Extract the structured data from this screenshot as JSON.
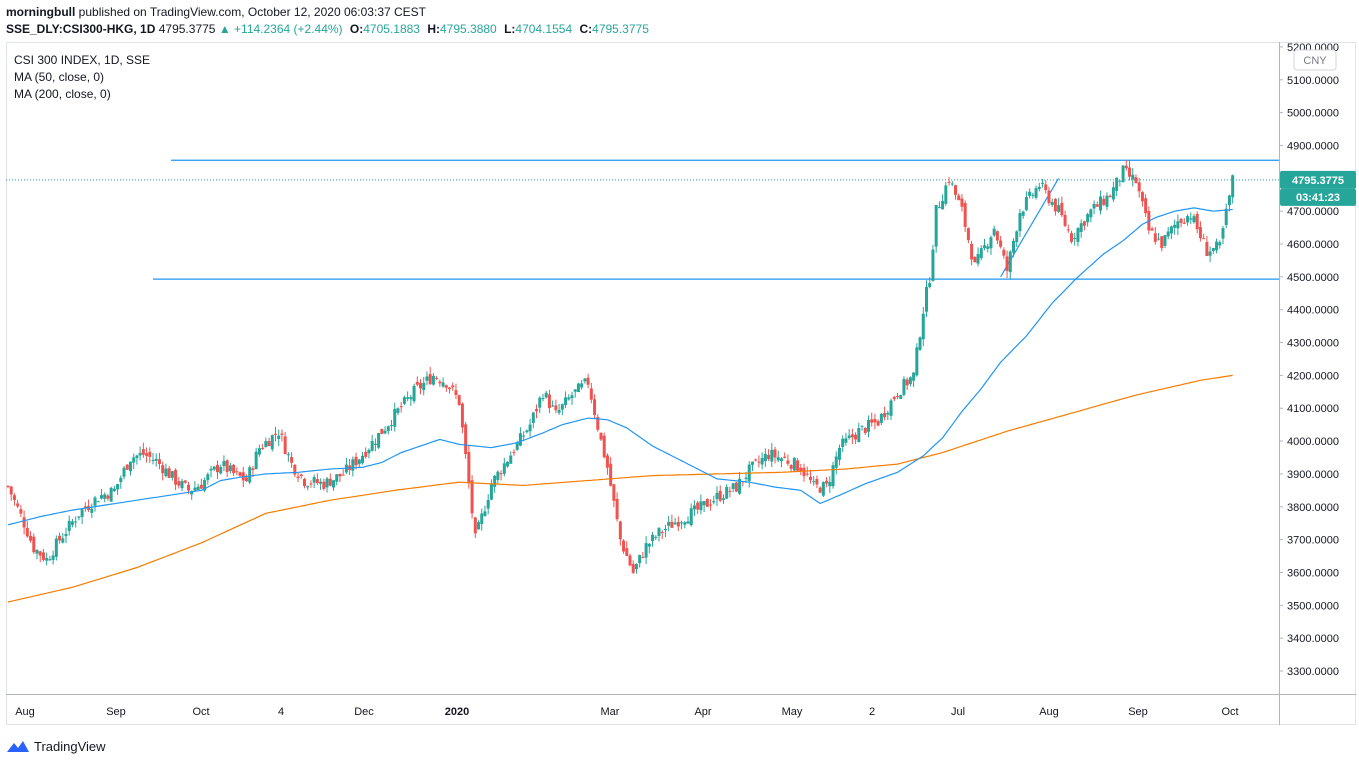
{
  "header": {
    "author": "morningbull",
    "published": "published on TradingView.com, October 12, 2020 06:03:37 CEST",
    "symbol": "SSE_DLY:CSI300-HKG, 1D",
    "price": "4795.3775",
    "change": "▲ +114.2364 (+2.44%)",
    "o_label": "O:",
    "o_value": "4705.1883",
    "h_label": "H:",
    "h_value": "4795.3880",
    "l_label": "L:",
    "l_value": "4704.1554",
    "c_label": "C:",
    "c_value": "4795.3775"
  },
  "legend": {
    "title": "CSI 300 INDEX, 1D, SSE",
    "ma50": "MA (50, close, 0)",
    "ma200": "MA (200, close, 0)"
  },
  "currency": "CNY",
  "last_price_badge": "4795.3775",
  "countdown_badge": "03:41:23",
  "footer": {
    "brand": "TradingView"
  },
  "colors": {
    "up": "#26a69a",
    "down": "#ef5350",
    "ma50": "#2196f3",
    "ma200": "#f57c00",
    "hline": "#2196f3",
    "badge": "#26a69a"
  },
  "chart_data": {
    "type": "candlestick",
    "y_axis_ticks": [
      "3300.0000",
      "3400.0000",
      "3500.0000",
      "3600.0000",
      "3700.0000",
      "3800.0000",
      "3900.0000",
      "4000.0000",
      "4100.0000",
      "4200.0000",
      "4300.0000",
      "4400.0000",
      "4500.0000",
      "4600.0000",
      "4700.0000",
      "4800.0000",
      "4900.0000",
      "5000.0000",
      "5100.0000",
      "5200.0000"
    ],
    "ylim": [
      3230,
      5215
    ],
    "x_axis_labels": [
      "Aug",
      "Sep",
      "Oct",
      "4",
      "Dec",
      "2020",
      "Mar",
      "Apr",
      "May",
      "2",
      "Jul",
      "Aug",
      "Sep",
      "Oct"
    ],
    "x_axis_bold": [
      "2020"
    ],
    "grid": false,
    "horizontal_lines": [
      {
        "name": "resistance",
        "value": 4855
      },
      {
        "name": "support",
        "value": 4493
      }
    ],
    "last_close": 4795.3775,
    "series_keypoints": {
      "close": [
        [
          0,
          3862
        ],
        [
          5,
          3750
        ],
        [
          8,
          3675
        ],
        [
          12,
          3640
        ],
        [
          16,
          3700
        ],
        [
          22,
          3780
        ],
        [
          28,
          3830
        ],
        [
          33,
          3850
        ],
        [
          38,
          3950
        ],
        [
          42,
          3960
        ],
        [
          46,
          3940
        ],
        [
          52,
          3880
        ],
        [
          56,
          3850
        ],
        [
          60,
          3870
        ],
        [
          66,
          3930
        ],
        [
          70,
          3900
        ],
        [
          74,
          3880
        ],
        [
          78,
          3980
        ],
        [
          84,
          4030
        ],
        [
          88,
          3930
        ],
        [
          92,
          3880
        ],
        [
          98,
          3870
        ],
        [
          104,
          3900
        ],
        [
          110,
          3960
        ],
        [
          116,
          4030
        ],
        [
          120,
          4080
        ],
        [
          126,
          4150
        ],
        [
          132,
          4200
        ],
        [
          136,
          4180
        ],
        [
          140,
          4120
        ],
        [
          145,
          3700
        ],
        [
          150,
          3870
        ],
        [
          156,
          3960
        ],
        [
          162,
          4050
        ],
        [
          166,
          4150
        ],
        [
          170,
          4080
        ],
        [
          175,
          4140
        ],
        [
          180,
          4180
        ],
        [
          184,
          4000
        ],
        [
          186,
          3920
        ],
        [
          190,
          3700
        ],
        [
          194,
          3600
        ],
        [
          198,
          3680
        ],
        [
          202,
          3720
        ],
        [
          208,
          3760
        ],
        [
          214,
          3790
        ],
        [
          220,
          3830
        ],
        [
          226,
          3860
        ],
        [
          230,
          3910
        ],
        [
          236,
          3960
        ],
        [
          241,
          3945
        ],
        [
          246,
          3920
        ],
        [
          250,
          3860
        ],
        [
          254,
          3860
        ],
        [
          258,
          3980
        ],
        [
          264,
          4030
        ],
        [
          270,
          4060
        ],
        [
          276,
          4150
        ],
        [
          281,
          4200
        ],
        [
          284,
          4400
        ],
        [
          286,
          4500
        ],
        [
          288,
          4700
        ],
        [
          292,
          4800
        ],
        [
          296,
          4700
        ],
        [
          300,
          4530
        ],
        [
          306,
          4650
        ],
        [
          310,
          4520
        ],
        [
          314,
          4700
        ],
        [
          320,
          4780
        ],
        [
          326,
          4700
        ],
        [
          330,
          4620
        ],
        [
          336,
          4700
        ],
        [
          342,
          4750
        ],
        [
          346,
          4820
        ],
        [
          350,
          4790
        ],
        [
          354,
          4640
        ],
        [
          358,
          4600
        ],
        [
          363,
          4670
        ],
        [
          367,
          4690
        ],
        [
          372,
          4580
        ],
        [
          376,
          4590
        ],
        [
          380,
          4795
        ]
      ],
      "ma50": [
        [
          0,
          3745
        ],
        [
          10,
          3770
        ],
        [
          20,
          3790
        ],
        [
          30,
          3805
        ],
        [
          40,
          3820
        ],
        [
          50,
          3835
        ],
        [
          60,
          3850
        ],
        [
          66,
          3880
        ],
        [
          72,
          3890
        ],
        [
          80,
          3900
        ],
        [
          90,
          3905
        ],
        [
          100,
          3915
        ],
        [
          110,
          3920
        ],
        [
          116,
          3935
        ],
        [
          122,
          3965
        ],
        [
          128,
          3985
        ],
        [
          134,
          4005
        ],
        [
          140,
          3990
        ],
        [
          150,
          3980
        ],
        [
          158,
          3995
        ],
        [
          166,
          4025
        ],
        [
          172,
          4050
        ],
        [
          180,
          4070
        ],
        [
          186,
          4065
        ],
        [
          192,
          4040
        ],
        [
          200,
          3985
        ],
        [
          210,
          3935
        ],
        [
          220,
          3885
        ],
        [
          230,
          3875
        ],
        [
          238,
          3860
        ],
        [
          246,
          3850
        ],
        [
          252,
          3810
        ],
        [
          258,
          3835
        ],
        [
          266,
          3870
        ],
        [
          276,
          3905
        ],
        [
          284,
          3955
        ],
        [
          290,
          4010
        ],
        [
          296,
          4090
        ],
        [
          302,
          4160
        ],
        [
          308,
          4240
        ],
        [
          316,
          4320
        ],
        [
          324,
          4420
        ],
        [
          332,
          4500
        ],
        [
          340,
          4570
        ],
        [
          346,
          4610
        ],
        [
          352,
          4660
        ],
        [
          356,
          4680
        ],
        [
          362,
          4700
        ],
        [
          368,
          4710
        ],
        [
          374,
          4700
        ],
        [
          380,
          4705
        ]
      ],
      "ma200": [
        [
          0,
          3510
        ],
        [
          20,
          3555
        ],
        [
          40,
          3615
        ],
        [
          60,
          3690
        ],
        [
          80,
          3780
        ],
        [
          100,
          3820
        ],
        [
          120,
          3850
        ],
        [
          140,
          3875
        ],
        [
          160,
          3865
        ],
        [
          180,
          3880
        ],
        [
          200,
          3895
        ],
        [
          220,
          3900
        ],
        [
          240,
          3905
        ],
        [
          260,
          3915
        ],
        [
          276,
          3930
        ],
        [
          290,
          3965
        ],
        [
          310,
          4030
        ],
        [
          330,
          4085
        ],
        [
          350,
          4140
        ],
        [
          370,
          4185
        ],
        [
          380,
          4200
        ]
      ]
    },
    "n_bars": 381,
    "x_span": [
      0,
      395
    ]
  }
}
